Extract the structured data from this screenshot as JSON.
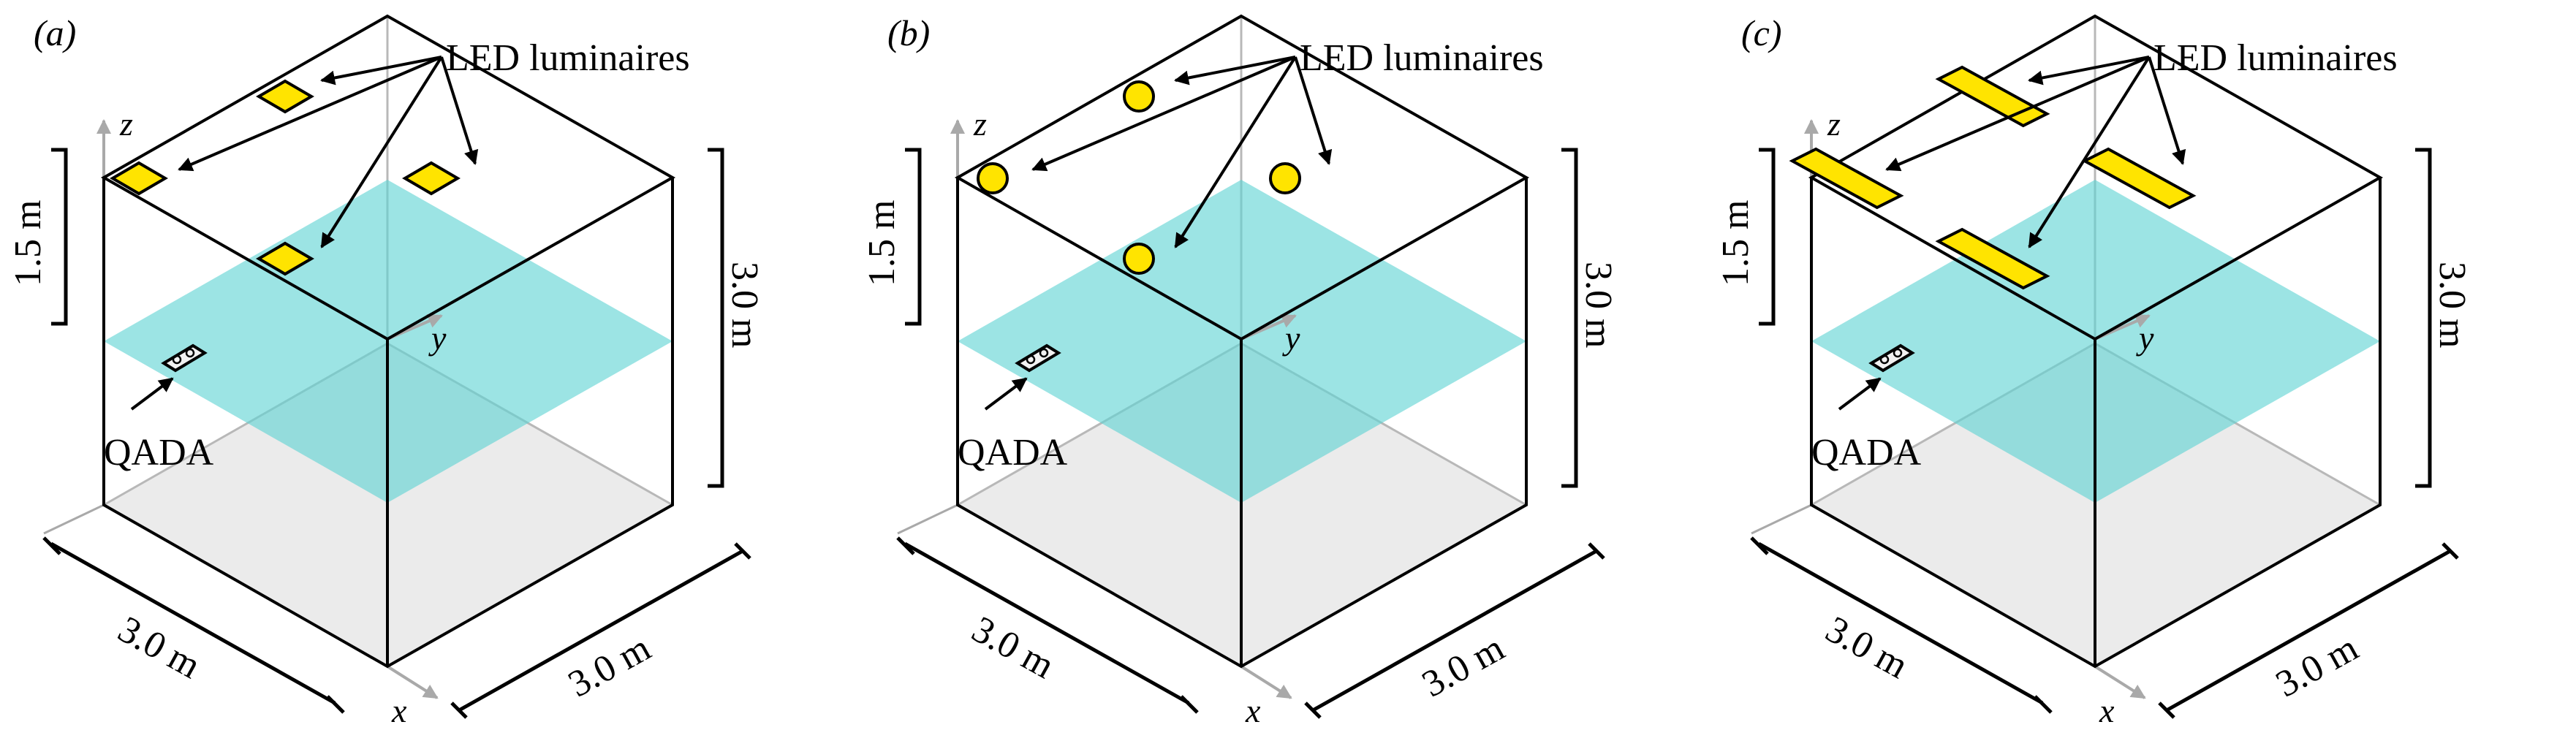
{
  "figure": {
    "panels": [
      {
        "tag": "(a)",
        "led_label": "LED luminaires",
        "led_shape": "square",
        "receiver_label": "QADA",
        "dim_height_half": "1.5 m",
        "dim_height_full": "3.0 m",
        "dim_length_front": "3.0 m",
        "dim_length_side": "3.0 m",
        "axis_x": "x",
        "axis_y": "y",
        "axis_z": "z"
      },
      {
        "tag": "(b)",
        "led_label": "LED luminaires",
        "led_shape": "circle",
        "receiver_label": "QADA",
        "dim_height_half": "1.5 m",
        "dim_height_full": "3.0 m",
        "dim_length_front": "3.0 m",
        "dim_length_side": "3.0 m",
        "axis_x": "x",
        "axis_y": "y",
        "axis_z": "z"
      },
      {
        "tag": "(c)",
        "led_label": "LED luminaires",
        "led_shape": "rectangle",
        "receiver_label": "QADA",
        "dim_height_half": "1.5 m",
        "dim_height_full": "3.0 m",
        "dim_length_front": "3.0 m",
        "dim_length_side": "3.0 m",
        "axis_x": "x",
        "axis_y": "y",
        "axis_z": "z"
      }
    ],
    "colors": {
      "receiver_plane": "#5fd3d3",
      "floor": "#e4e4e4",
      "led_fill": "#ffe400",
      "edge": "#000000",
      "axis_gray": "#a9a9a9"
    }
  }
}
